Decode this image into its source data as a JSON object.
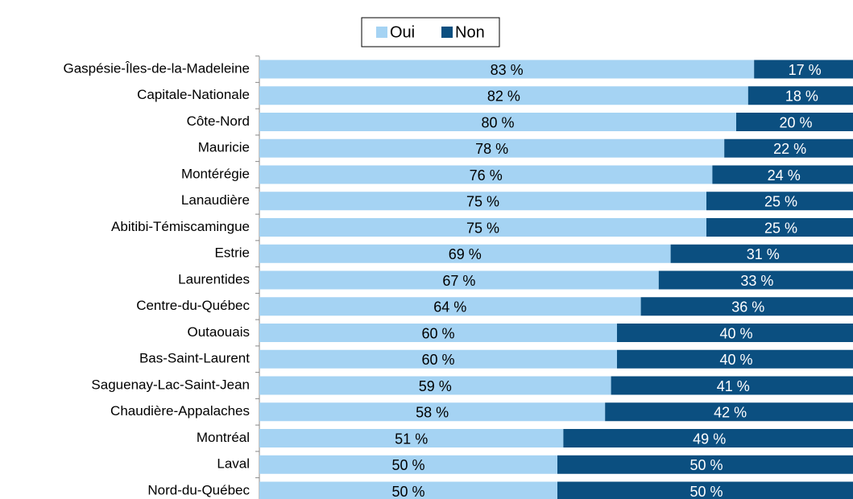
{
  "chart_data": {
    "type": "stacked-bar-horizontal",
    "categories": [
      "Gaspésie-Îles-de-la-Madeleine",
      "Capitale-Nationale",
      "Côte-Nord",
      "Mauricie",
      "Montérégie",
      "Lanaudière",
      "Abitibi-Témiscamingue",
      "Estrie",
      "Laurentides",
      "Centre-du-Québec",
      "Outaouais",
      "Bas-Saint-Laurent",
      "Saguenay-Lac-Saint-Jean",
      "Chaudière-Appalaches",
      "Montréal",
      "Laval",
      "Nord-du-Québec"
    ],
    "series": [
      {
        "name": "Oui",
        "color": "#a5d3f3",
        "values": [
          83,
          82,
          80,
          78,
          76,
          75,
          75,
          69,
          67,
          64,
          60,
          60,
          59,
          58,
          51,
          50,
          50
        ],
        "value_labels": [
          "83 %",
          "82 %",
          "80 %",
          "78 %",
          "76 %",
          "75 %",
          "75 %",
          "69 %",
          "67 %",
          "64 %",
          "60 %",
          "60 %",
          "59 %",
          "58 %",
          "51 %",
          "50 %",
          "50 %"
        ]
      },
      {
        "name": "Non",
        "color": "#0b4f80",
        "values": [
          17,
          18,
          20,
          22,
          24,
          25,
          25,
          31,
          33,
          36,
          40,
          40,
          41,
          42,
          49,
          50,
          50
        ],
        "value_labels": [
          "17 %",
          "18 %",
          "20 %",
          "22 %",
          "24 %",
          "25 %",
          "25 %",
          "31 %",
          "33 %",
          "36 %",
          "40 %",
          "40 %",
          "41 %",
          "42 %",
          "49 %",
          "50 %",
          "50 %"
        ]
      }
    ],
    "xlim": [
      0,
      100
    ],
    "legend": "top"
  }
}
